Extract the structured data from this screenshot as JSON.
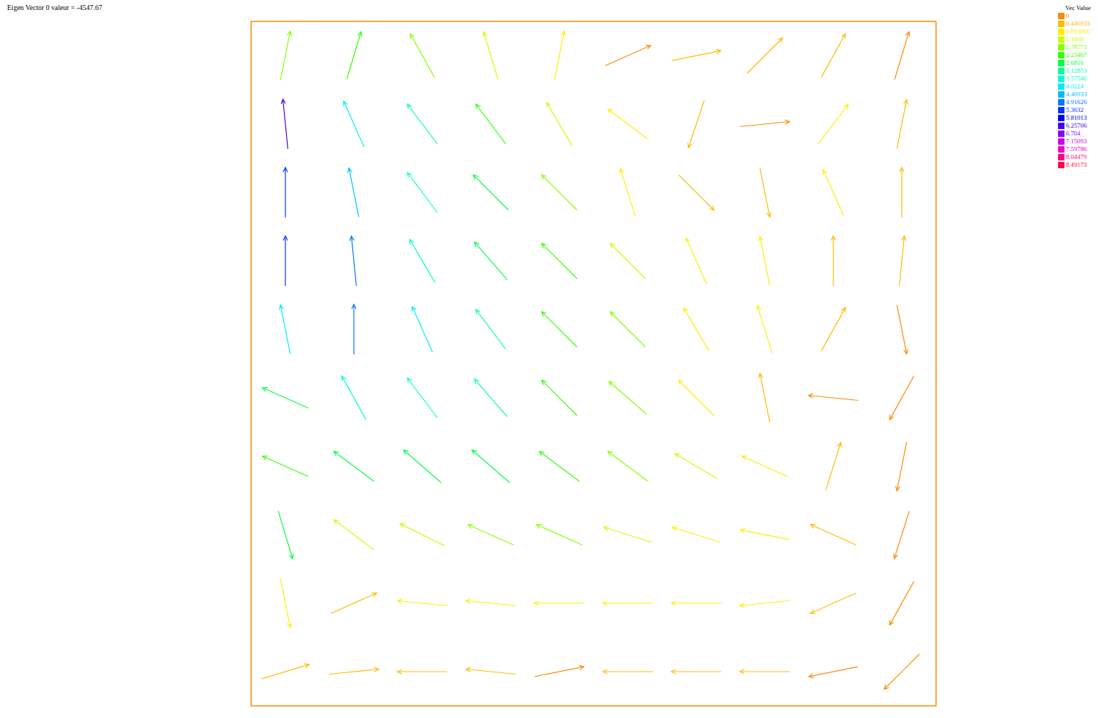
{
  "chart_data": {
    "type": "quiver",
    "title": "Eigen Vector 0 valeur = -4547.67",
    "xlim": [
      0,
      1
    ],
    "ylim": [
      0,
      1
    ],
    "tick_labels": false,
    "vectors": [
      {
        "x": 0.05,
        "y": 0.95,
        "u": 0.2,
        "v": 1,
        "magnitude": 2.0
      },
      {
        "x": 0.15,
        "y": 0.95,
        "u": 0.3,
        "v": 1,
        "magnitude": 2.5
      },
      {
        "x": 0.25,
        "y": 0.95,
        "u": -0.5,
        "v": 0.9,
        "magnitude": 1.8
      },
      {
        "x": 0.35,
        "y": 0.95,
        "u": -0.3,
        "v": 1,
        "magnitude": 1.4
      },
      {
        "x": 0.45,
        "y": 0.95,
        "u": 0.2,
        "v": 1,
        "magnitude": 1.1
      },
      {
        "x": 0.55,
        "y": 0.95,
        "u": 0.9,
        "v": 0.4,
        "magnitude": 0.4
      },
      {
        "x": 0.65,
        "y": 0.95,
        "u": 1,
        "v": 0.2,
        "magnitude": 0.5
      },
      {
        "x": 0.75,
        "y": 0.95,
        "u": 0.7,
        "v": 0.7,
        "magnitude": 0.8
      },
      {
        "x": 0.85,
        "y": 0.95,
        "u": 0.5,
        "v": 0.9,
        "magnitude": 0.6
      },
      {
        "x": 0.95,
        "y": 0.95,
        "u": 0.3,
        "v": 1,
        "magnitude": 0.4
      },
      {
        "x": 0.05,
        "y": 0.85,
        "u": -0.1,
        "v": 1,
        "magnitude": 6.5
      },
      {
        "x": 0.15,
        "y": 0.85,
        "u": -0.4,
        "v": 0.9,
        "magnitude": 4.3
      },
      {
        "x": 0.25,
        "y": 0.85,
        "u": -0.6,
        "v": 0.8,
        "magnitude": 3.2
      },
      {
        "x": 0.35,
        "y": 0.85,
        "u": -0.6,
        "v": 0.8,
        "magnitude": 2.4
      },
      {
        "x": 0.45,
        "y": 0.85,
        "u": -0.5,
        "v": 0.85,
        "magnitude": 1.6
      },
      {
        "x": 0.55,
        "y": 0.85,
        "u": -0.8,
        "v": 0.6,
        "magnitude": 1.0
      },
      {
        "x": 0.65,
        "y": 0.85,
        "u": -0.3,
        "v": -0.9,
        "magnitude": 0.7
      },
      {
        "x": 0.75,
        "y": 0.85,
        "u": 1,
        "v": 0.1,
        "magnitude": 0.4
      },
      {
        "x": 0.85,
        "y": 0.85,
        "u": 0.6,
        "v": 0.8,
        "magnitude": 1.0
      },
      {
        "x": 0.95,
        "y": 0.85,
        "u": 0.2,
        "v": 1,
        "magnitude": 0.7
      },
      {
        "x": 0.05,
        "y": 0.75,
        "u": 0,
        "v": 1,
        "magnitude": 5.8
      },
      {
        "x": 0.15,
        "y": 0.75,
        "u": -0.2,
        "v": 1,
        "magnitude": 4.8
      },
      {
        "x": 0.25,
        "y": 0.75,
        "u": -0.6,
        "v": 0.8,
        "magnitude": 3.8
      },
      {
        "x": 0.35,
        "y": 0.75,
        "u": -0.7,
        "v": 0.7,
        "magnitude": 2.8
      },
      {
        "x": 0.45,
        "y": 0.75,
        "u": -0.7,
        "v": 0.7,
        "magnitude": 2.0
      },
      {
        "x": 0.55,
        "y": 0.75,
        "u": -0.3,
        "v": 0.95,
        "magnitude": 1.2
      },
      {
        "x": 0.65,
        "y": 0.75,
        "u": 0.7,
        "v": -0.7,
        "magnitude": 0.5
      },
      {
        "x": 0.75,
        "y": 0.75,
        "u": 0.2,
        "v": -1,
        "magnitude": 0.6
      },
      {
        "x": 0.85,
        "y": 0.75,
        "u": -0.4,
        "v": 0.9,
        "magnitude": 1.1
      },
      {
        "x": 0.95,
        "y": 0.75,
        "u": 0,
        "v": 1,
        "magnitude": 0.6
      },
      {
        "x": 0.05,
        "y": 0.65,
        "u": 0,
        "v": 1,
        "magnitude": 5.5
      },
      {
        "x": 0.15,
        "y": 0.65,
        "u": -0.1,
        "v": 1,
        "magnitude": 5.2
      },
      {
        "x": 0.25,
        "y": 0.65,
        "u": -0.5,
        "v": 0.85,
        "magnitude": 4.0
      },
      {
        "x": 0.35,
        "y": 0.65,
        "u": -0.65,
        "v": 0.75,
        "magnitude": 3.1
      },
      {
        "x": 0.45,
        "y": 0.65,
        "u": -0.7,
        "v": 0.7,
        "magnitude": 2.3
      },
      {
        "x": 0.55,
        "y": 0.65,
        "u": -0.7,
        "v": 0.7,
        "magnitude": 1.5
      },
      {
        "x": 0.65,
        "y": 0.65,
        "u": -0.4,
        "v": 0.9,
        "magnitude": 1.1
      },
      {
        "x": 0.75,
        "y": 0.65,
        "u": -0.2,
        "v": 1,
        "magnitude": 0.9
      },
      {
        "x": 0.85,
        "y": 0.65,
        "u": 0,
        "v": 1,
        "magnitude": 0.8
      },
      {
        "x": 0.95,
        "y": 0.65,
        "u": 0.1,
        "v": 1,
        "magnitude": 0.5
      },
      {
        "x": 0.05,
        "y": 0.55,
        "u": -0.2,
        "v": 1,
        "magnitude": 4.2
      },
      {
        "x": 0.15,
        "y": 0.55,
        "u": 0,
        "v": 1,
        "magnitude": 5.0
      },
      {
        "x": 0.25,
        "y": 0.55,
        "u": -0.4,
        "v": 0.9,
        "magnitude": 4.2
      },
      {
        "x": 0.35,
        "y": 0.55,
        "u": -0.6,
        "v": 0.8,
        "magnitude": 3.4
      },
      {
        "x": 0.45,
        "y": 0.55,
        "u": -0.7,
        "v": 0.7,
        "magnitude": 2.5
      },
      {
        "x": 0.55,
        "y": 0.55,
        "u": -0.7,
        "v": 0.7,
        "magnitude": 1.8
      },
      {
        "x": 0.65,
        "y": 0.55,
        "u": -0.5,
        "v": 0.85,
        "magnitude": 1.2
      },
      {
        "x": 0.75,
        "y": 0.55,
        "u": -0.3,
        "v": 0.95,
        "magnitude": 0.9
      },
      {
        "x": 0.85,
        "y": 0.55,
        "u": 0.5,
        "v": 0.9,
        "magnitude": 0.6
      },
      {
        "x": 0.95,
        "y": 0.55,
        "u": 0.2,
        "v": -1,
        "magnitude": 0.4
      },
      {
        "x": 0.05,
        "y": 0.45,
        "u": -0.9,
        "v": 0.4,
        "magnitude": 3.0
      },
      {
        "x": 0.15,
        "y": 0.45,
        "u": -0.5,
        "v": 0.9,
        "magnitude": 4.0
      },
      {
        "x": 0.25,
        "y": 0.45,
        "u": -0.6,
        "v": 0.8,
        "magnitude": 3.8
      },
      {
        "x": 0.35,
        "y": 0.45,
        "u": -0.65,
        "v": 0.75,
        "magnitude": 3.2
      },
      {
        "x": 0.45,
        "y": 0.45,
        "u": -0.7,
        "v": 0.7,
        "magnitude": 2.6
      },
      {
        "x": 0.55,
        "y": 0.45,
        "u": -0.75,
        "v": 0.65,
        "magnitude": 1.9
      },
      {
        "x": 0.65,
        "y": 0.45,
        "u": -0.7,
        "v": 0.7,
        "magnitude": 1.3
      },
      {
        "x": 0.75,
        "y": 0.45,
        "u": -0.2,
        "v": 1,
        "magnitude": 0.8
      },
      {
        "x": 0.85,
        "y": 0.45,
        "u": -1,
        "v": 0.1,
        "magnitude": 0.4
      },
      {
        "x": 0.95,
        "y": 0.45,
        "u": -0.5,
        "v": -0.9,
        "magnitude": 0.3
      },
      {
        "x": 0.05,
        "y": 0.35,
        "u": -0.9,
        "v": 0.4,
        "magnitude": 2.6
      },
      {
        "x": 0.15,
        "y": 0.35,
        "u": -0.8,
        "v": 0.6,
        "magnitude": 2.8
      },
      {
        "x": 0.25,
        "y": 0.35,
        "u": -0.75,
        "v": 0.65,
        "magnitude": 3.0
      },
      {
        "x": 0.35,
        "y": 0.35,
        "u": -0.75,
        "v": 0.65,
        "magnitude": 2.8
      },
      {
        "x": 0.45,
        "y": 0.35,
        "u": -0.8,
        "v": 0.6,
        "magnitude": 2.4
      },
      {
        "x": 0.55,
        "y": 0.35,
        "u": -0.8,
        "v": 0.6,
        "magnitude": 1.9
      },
      {
        "x": 0.65,
        "y": 0.35,
        "u": -0.85,
        "v": 0.5,
        "magnitude": 1.4
      },
      {
        "x": 0.75,
        "y": 0.35,
        "u": -0.9,
        "v": 0.4,
        "magnitude": 1.0
      },
      {
        "x": 0.85,
        "y": 0.35,
        "u": 0.3,
        "v": 0.95,
        "magnitude": 0.5
      },
      {
        "x": 0.95,
        "y": 0.35,
        "u": -0.2,
        "v": -1,
        "magnitude": 0.4
      },
      {
        "x": 0.05,
        "y": 0.25,
        "u": 0.3,
        "v": -1,
        "magnitude": 2.8
      },
      {
        "x": 0.15,
        "y": 0.25,
        "u": -0.8,
        "v": 0.6,
        "magnitude": 1.6
      },
      {
        "x": 0.25,
        "y": 0.25,
        "u": -0.9,
        "v": 0.45,
        "magnitude": 1.5
      },
      {
        "x": 0.35,
        "y": 0.25,
        "u": -0.9,
        "v": 0.4,
        "magnitude": 1.9
      },
      {
        "x": 0.45,
        "y": 0.25,
        "u": -0.9,
        "v": 0.4,
        "magnitude": 1.8
      },
      {
        "x": 0.55,
        "y": 0.25,
        "u": -0.95,
        "v": 0.3,
        "magnitude": 1.5
      },
      {
        "x": 0.65,
        "y": 0.25,
        "u": -0.95,
        "v": 0.3,
        "magnitude": 1.2
      },
      {
        "x": 0.75,
        "y": 0.25,
        "u": -1,
        "v": 0.2,
        "magnitude": 1.0
      },
      {
        "x": 0.85,
        "y": 0.25,
        "u": -0.9,
        "v": 0.4,
        "magnitude": 0.8
      },
      {
        "x": 0.95,
        "y": 0.25,
        "u": -0.3,
        "v": -0.95,
        "magnitude": 0.4
      },
      {
        "x": 0.05,
        "y": 0.15,
        "u": 0.2,
        "v": -1,
        "magnitude": 1.0
      },
      {
        "x": 0.15,
        "y": 0.15,
        "u": 0.9,
        "v": 0.4,
        "magnitude": 0.6
      },
      {
        "x": 0.25,
        "y": 0.15,
        "u": -1,
        "v": 0.1,
        "magnitude": 0.9
      },
      {
        "x": 0.35,
        "y": 0.15,
        "u": -1,
        "v": 0.1,
        "magnitude": 1.0
      },
      {
        "x": 0.45,
        "y": 0.15,
        "u": -1,
        "v": 0,
        "magnitude": 1.1
      },
      {
        "x": 0.55,
        "y": 0.15,
        "u": -1,
        "v": 0,
        "magnitude": 1.1
      },
      {
        "x": 0.65,
        "y": 0.15,
        "u": -1,
        "v": 0,
        "magnitude": 1.0
      },
      {
        "x": 0.75,
        "y": 0.15,
        "u": -1,
        "v": -0.1,
        "magnitude": 0.9
      },
      {
        "x": 0.85,
        "y": 0.15,
        "u": -0.9,
        "v": -0.4,
        "magnitude": 0.7
      },
      {
        "x": 0.95,
        "y": 0.15,
        "u": -0.5,
        "v": -0.9,
        "magnitude": 0.3
      },
      {
        "x": 0.05,
        "y": 0.05,
        "u": 1,
        "v": 0.3,
        "magnitude": 0.8
      },
      {
        "x": 0.15,
        "y": 0.05,
        "u": 1,
        "v": 0.1,
        "magnitude": 0.7
      },
      {
        "x": 0.25,
        "y": 0.05,
        "u": -1,
        "v": 0,
        "magnitude": 0.5
      },
      {
        "x": 0.35,
        "y": 0.05,
        "u": -1,
        "v": 0.1,
        "magnitude": 0.8
      },
      {
        "x": 0.45,
        "y": 0.05,
        "u": 1,
        "v": 0.2,
        "magnitude": 0.4
      },
      {
        "x": 0.55,
        "y": 0.05,
        "u": -1,
        "v": 0,
        "magnitude": 0.6
      },
      {
        "x": 0.65,
        "y": 0.05,
        "u": -1,
        "v": 0,
        "magnitude": 0.7
      },
      {
        "x": 0.75,
        "y": 0.05,
        "u": -1,
        "v": 0,
        "magnitude": 0.5
      },
      {
        "x": 0.85,
        "y": 0.05,
        "u": -1,
        "v": -0.2,
        "magnitude": 0.4
      },
      {
        "x": 0.95,
        "y": 0.05,
        "u": -0.7,
        "v": -0.7,
        "magnitude": 0.3
      }
    ],
    "colorbar": {
      "title": "Vec Value",
      "ticks": [
        0,
        0.446933,
        0.893866,
        1.3408,
        1.78773,
        2.23467,
        2.6816,
        3.12853,
        3.57546,
        4.0224,
        4.46933,
        4.91626,
        5.3632,
        5.81013,
        6.25706,
        6.704,
        7.15093,
        7.59786,
        8.04479,
        8.49173
      ],
      "colors": [
        "#ff8800",
        "#ffbb00",
        "#ffee00",
        "#ccff00",
        "#88ff00",
        "#33ff00",
        "#00ff44",
        "#00ff99",
        "#00ffcc",
        "#00eeff",
        "#00bbff",
        "#0077ff",
        "#0033ff",
        "#0000ee",
        "#4400ee",
        "#8800ff",
        "#cc00ee",
        "#ee00cc",
        "#ff0088",
        "#ff0044"
      ]
    }
  }
}
